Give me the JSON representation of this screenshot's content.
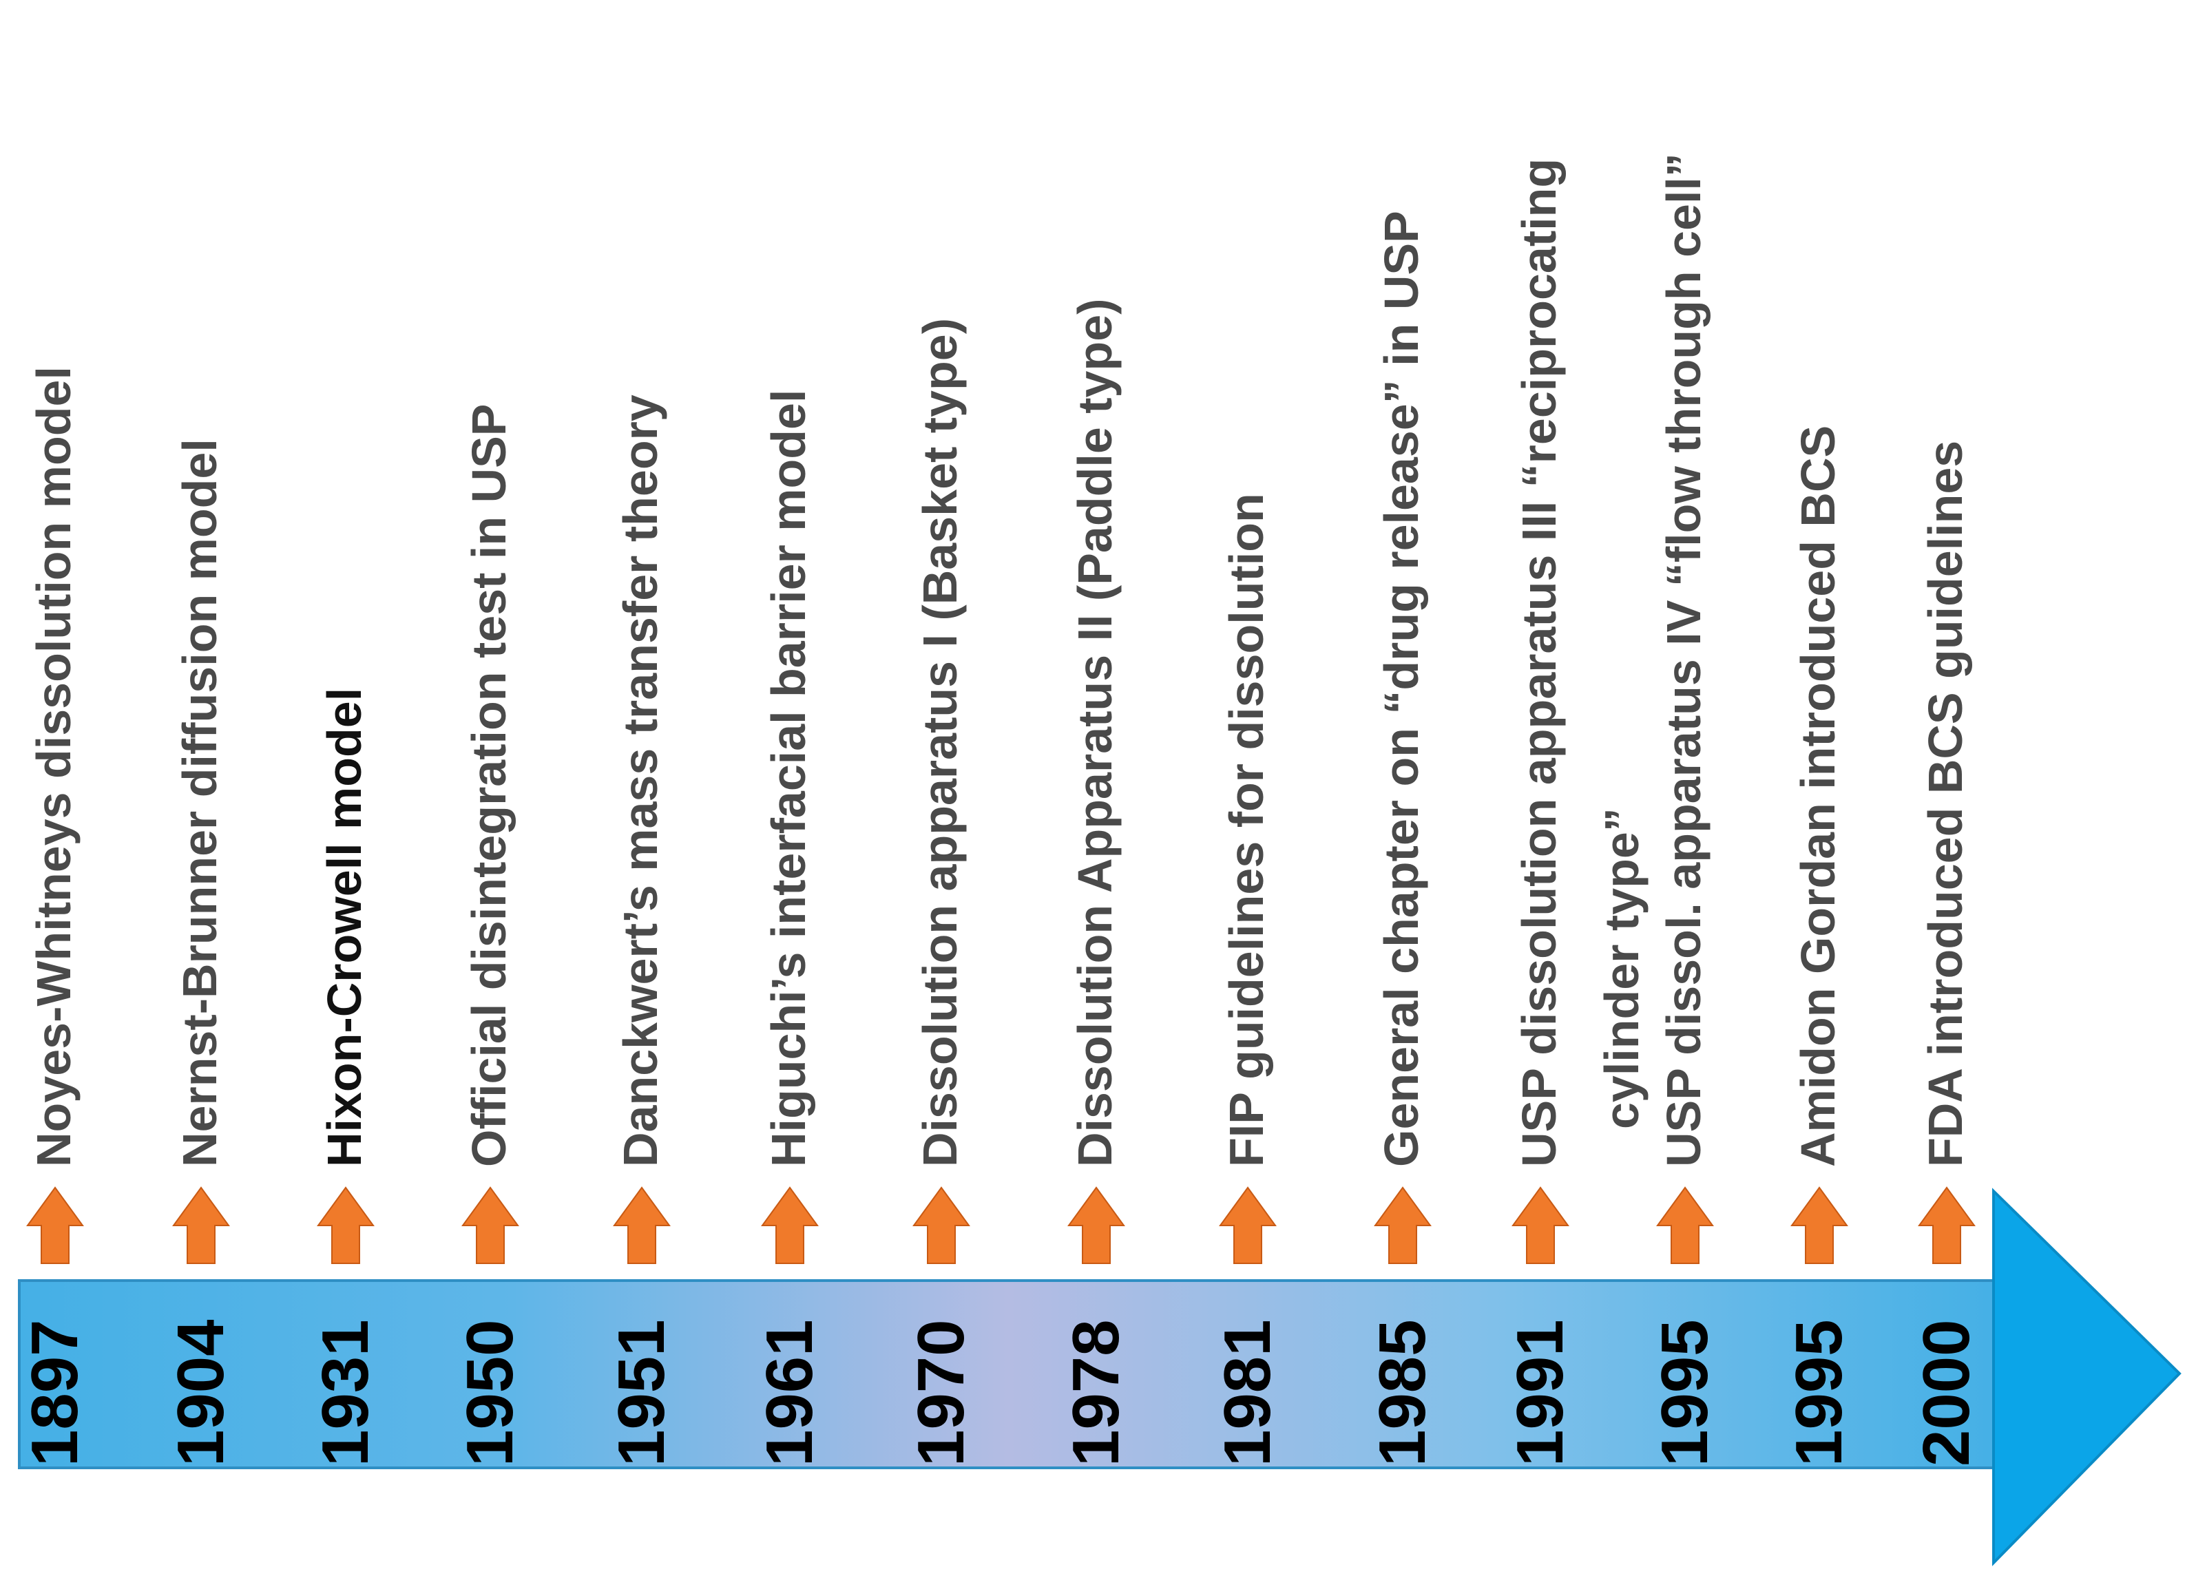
{
  "colors": {
    "band_edge": "#45B0E6",
    "band_center": "#B4BCE3",
    "arrow_head": "#0BA5E8",
    "marker": "#F07A2A",
    "event_text": "#4a4a4a",
    "year_text": "#000000"
  },
  "timeline": {
    "events": [
      {
        "year": "1897",
        "lines": [
          "Noyes-Whitneys dissolution model"
        ]
      },
      {
        "year": "1904",
        "lines": [
          "Nernst-Brunner  diffusion model"
        ]
      },
      {
        "year": "1931",
        "lines": [
          "Hixon-Crowell model"
        ]
      },
      {
        "year": "1950",
        "lines": [
          "Official disintegration test in USP"
        ]
      },
      {
        "year": "1951",
        "lines": [
          "Danckwert’s mass transfer theory"
        ]
      },
      {
        "year": "1961",
        "lines": [
          "Higuchi’s interfacial barrier model"
        ]
      },
      {
        "year": "1970",
        "lines": [
          "Dissolution apparatus I (Basket type)"
        ]
      },
      {
        "year": "1978",
        "lines": [
          "Dissolution Apparatus II (Paddle type)"
        ]
      },
      {
        "year": "1981",
        "lines": [
          "FIP guidelines for dissolution"
        ]
      },
      {
        "year": "1985",
        "lines": [
          "General chapter on “drug release” in USP"
        ]
      },
      {
        "year": "1991",
        "lines": [
          "USP dissolution apparatus III “reciprocating",
          "cylinder type”"
        ]
      },
      {
        "year": "1995",
        "lines": [
          "USP dissol. apparatus IV “flow through cell”"
        ]
      },
      {
        "year": "1995",
        "lines": [
          "Amidon Gordan introduced BCS"
        ]
      },
      {
        "year": "2000",
        "lines": [
          "FDA introduced BCS guidelines"
        ]
      }
    ]
  }
}
